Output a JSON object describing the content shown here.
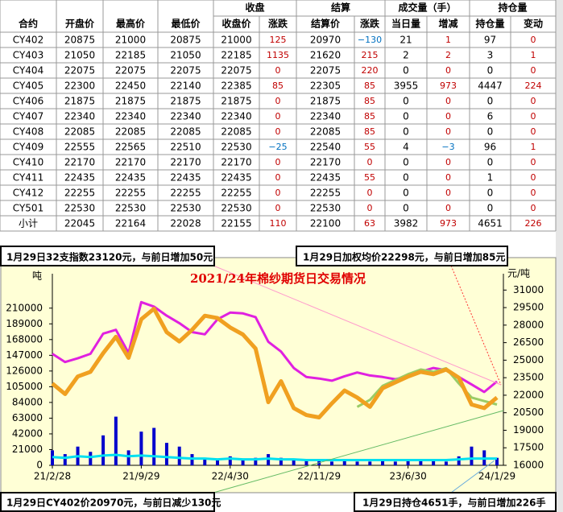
{
  "table": {
    "header_top": [
      "合约",
      "开盘价",
      "最高价",
      "最低价",
      "收盘",
      "结算",
      "成交量（手）",
      "持仓量"
    ],
    "header_sub": [
      "收盘价",
      "涨跌",
      "结算价",
      "涨跌",
      "当日量",
      "增减",
      "持仓量",
      "变动"
    ],
    "rows": [
      [
        "CY402",
        "20875",
        "21000",
        "20875",
        "21000",
        "125",
        "20970",
        "−130",
        "21",
        "1",
        "97",
        "0"
      ],
      [
        "CY403",
        "21050",
        "22185",
        "21050",
        "22185",
        "1135",
        "21620",
        "215",
        "2",
        "2",
        "3",
        "1"
      ],
      [
        "CY404",
        "22075",
        "22075",
        "22075",
        "22075",
        "0",
        "22075",
        "220",
        "0",
        "0",
        "0",
        "0"
      ],
      [
        "CY405",
        "22300",
        "22450",
        "22140",
        "22385",
        "85",
        "22305",
        "85",
        "3955",
        "973",
        "4447",
        "224"
      ],
      [
        "CY406",
        "21875",
        "21875",
        "21875",
        "21875",
        "0",
        "21875",
        "85",
        "0",
        "0",
        "0",
        "0"
      ],
      [
        "CY407",
        "22340",
        "22340",
        "22340",
        "22340",
        "0",
        "22340",
        "85",
        "0",
        "0",
        "6",
        "0"
      ],
      [
        "CY408",
        "22085",
        "22085",
        "22085",
        "22085",
        "0",
        "22085",
        "85",
        "0",
        "0",
        "0",
        "0"
      ],
      [
        "CY409",
        "22555",
        "22565",
        "22510",
        "22530",
        "−25",
        "22540",
        "55",
        "4",
        "−3",
        "96",
        "1"
      ],
      [
        "CY410",
        "22170",
        "22170",
        "22170",
        "22170",
        "0",
        "22170",
        "0",
        "0",
        "0",
        "0",
        "0"
      ],
      [
        "CY411",
        "22435",
        "22435",
        "22435",
        "22435",
        "0",
        "22435",
        "55",
        "0",
        "0",
        "1",
        "0"
      ],
      [
        "CY412",
        "22255",
        "22255",
        "22255",
        "22255",
        "0",
        "22255",
        "0",
        "0",
        "0",
        "0",
        "0"
      ],
      [
        "CY501",
        "22530",
        "22530",
        "22530",
        "22530",
        "0",
        "22530",
        "0",
        "0",
        "0",
        "0",
        "0"
      ],
      [
        "小计",
        "22045",
        "22164",
        "22028",
        "22155",
        "110",
        "22100",
        "63",
        "3982",
        "973",
        "4651",
        "226"
      ]
    ]
  },
  "chart_data": {
    "type": "combo",
    "title": "2021/24年棉纱期货日交易情况",
    "y_label": "吨",
    "y2_label": "元/吨",
    "annotations": [
      "1月29日32支指数23120元，与前日增加50元",
      "1月29日加权均价22298元，与前日增加85元",
      "1月29日CY402价20970元，与前日减少130元",
      "1月29日持仓4651手，与前日增加226手"
    ],
    "x": [
      "21/2/28",
      null,
      null,
      null,
      null,
      null,
      null,
      "21/9/29",
      null,
      null,
      null,
      null,
      null,
      null,
      "22/4/30",
      null,
      null,
      null,
      null,
      null,
      null,
      "22/11/29",
      null,
      null,
      null,
      null,
      null,
      null,
      "23/6/30",
      null,
      null,
      null,
      null,
      null,
      null,
      "24/1/29"
    ],
    "ylim": [
      0,
      256000
    ],
    "yticks": [
      0,
      21000,
      42000,
      63000,
      84000,
      105000,
      126000,
      147000,
      168000,
      189000,
      210000
    ],
    "y2lim": [
      16000,
      32400
    ],
    "y2ticks": [
      16000,
      17500,
      19000,
      20500,
      22000,
      23500,
      25000,
      26500,
      28000,
      29500,
      31000
    ],
    "grid": false,
    "series": [
      {
        "type": "bar",
        "axis": "y",
        "color": "#0000cc",
        "values": [
          20000,
          15000,
          25000,
          18000,
          40000,
          65000,
          20000,
          45000,
          50000,
          30000,
          25000,
          15000,
          10000,
          8000,
          12000,
          8000,
          10000,
          15000,
          10000,
          8000,
          7000,
          6000,
          5000,
          6000,
          5000,
          5000,
          6000,
          5000,
          7000,
          8000,
          6000,
          5000,
          12000,
          25000,
          20000,
          10000
        ]
      },
      {
        "type": "line",
        "axis": "y",
        "color": "#00e0f0",
        "values": [
          11000,
          10000,
          12000,
          11000,
          13000,
          14000,
          12000,
          13000,
          12000,
          11000,
          10000,
          9000,
          9000,
          8000,
          9000,
          8000,
          8000,
          9000,
          8000,
          8000,
          7000,
          7000,
          7000,
          7000,
          7000,
          7000,
          7000,
          7000,
          7000,
          7000,
          7000,
          7000,
          8000,
          9000,
          9000,
          9000
        ]
      },
      {
        "type": "line",
        "axis": "y",
        "color": "#e020e0",
        "values": [
          149000,
          138000,
          143000,
          149000,
          176000,
          181000,
          150000,
          218000,
          212000,
          200000,
          190000,
          178000,
          175000,
          195000,
          204000,
          203000,
          198000,
          165000,
          152000,
          130000,
          118000,
          116000,
          113000,
          119000,
          124000,
          120000,
          118000,
          115000,
          119000,
          125000,
          130000,
          127000,
          118000,
          108000,
          98000,
          112000
        ]
      },
      {
        "type": "line",
        "axis": "y2",
        "color": "#99cc66",
        "values": [
          null,
          null,
          null,
          null,
          null,
          null,
          null,
          null,
          null,
          null,
          null,
          null,
          null,
          null,
          null,
          null,
          null,
          null,
          null,
          null,
          null,
          null,
          null,
          null,
          21000,
          21600,
          22800,
          23300,
          23800,
          24200,
          24000,
          24300,
          23000,
          21800,
          21500,
          21200
        ]
      },
      {
        "type": "line",
        "axis": "y2",
        "color": "#f0a020",
        "values": [
          23000,
          22100,
          23600,
          24000,
          25600,
          27000,
          25200,
          28500,
          29400,
          27400,
          26600,
          27600,
          28800,
          28600,
          27800,
          27200,
          26000,
          21400,
          23200,
          20900,
          20300,
          20100,
          21300,
          22400,
          21800,
          21000,
          22600,
          23100,
          23600,
          24000,
          23800,
          24200,
          23500,
          21200,
          20900,
          21800
        ]
      }
    ]
  }
}
